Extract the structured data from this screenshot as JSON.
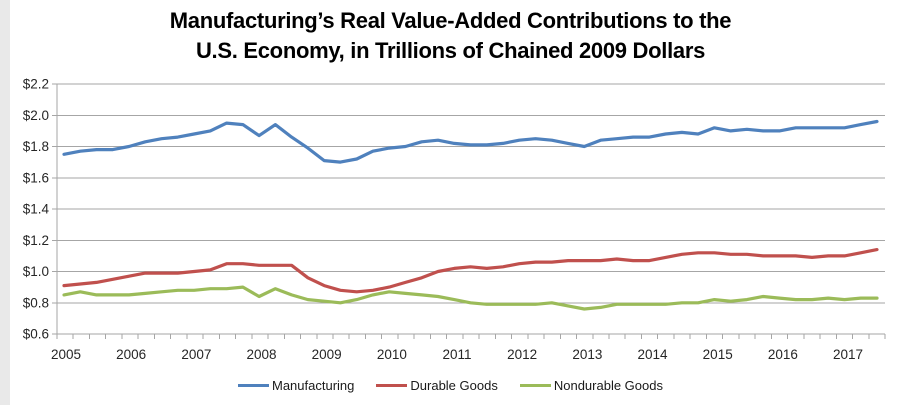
{
  "title_line1": "Manufacturing’s Real Value-Added Contributions to the",
  "title_line2": "U.S. Economy, in Trillions of Chained 2009 Dollars",
  "chart_data": {
    "type": "line",
    "title": "Manufacturing’s Real Value-Added Contributions to the U.S. Economy, in Trillions of Chained 2009 Dollars",
    "xlabel": "",
    "ylabel": "",
    "ylim": [
      0.6,
      2.2
    ],
    "ytick_step": 0.2,
    "y_tick_labels": [
      "$2.2",
      "$2.0",
      "$1.8",
      "$1.6",
      "$1.4",
      "$1.2",
      "$1.0",
      "$0.8",
      "$0.6"
    ],
    "y_tick_values": [
      2.2,
      2.0,
      1.8,
      1.6,
      1.4,
      1.2,
      1.0,
      0.8,
      0.6
    ],
    "x_year_labels": [
      "2005",
      "2006",
      "2007",
      "2008",
      "2009",
      "2010",
      "2011",
      "2012",
      "2013",
      "2014",
      "2015",
      "2016",
      "2017"
    ],
    "grid": true,
    "legend_position": "bottom",
    "x": [
      "2005 Q1",
      "2005 Q2",
      "2005 Q3",
      "2005 Q4",
      "2006 Q1",
      "2006 Q2",
      "2006 Q3",
      "2006 Q4",
      "2007 Q1",
      "2007 Q2",
      "2007 Q3",
      "2007 Q4",
      "2008 Q1",
      "2008 Q2",
      "2008 Q3",
      "2008 Q4",
      "2009 Q1",
      "2009 Q2",
      "2009 Q3",
      "2009 Q4",
      "2010 Q1",
      "2010 Q2",
      "2010 Q3",
      "2010 Q4",
      "2011 Q1",
      "2011 Q2",
      "2011 Q3",
      "2011 Q4",
      "2012 Q1",
      "2012 Q2",
      "2012 Q3",
      "2012 Q4",
      "2013 Q1",
      "2013 Q2",
      "2013 Q3",
      "2013 Q4",
      "2014 Q1",
      "2014 Q2",
      "2014 Q3",
      "2014 Q4",
      "2015 Q1",
      "2015 Q2",
      "2015 Q3",
      "2015 Q4",
      "2016 Q1",
      "2016 Q2",
      "2016 Q3",
      "2016 Q4",
      "2017 Q1",
      "2017 Q2",
      "2017 Q3"
    ],
    "series": [
      {
        "name": "Manufacturing",
        "color": "#4F81BD",
        "values": [
          1.75,
          1.77,
          1.78,
          1.78,
          1.8,
          1.83,
          1.85,
          1.86,
          1.88,
          1.9,
          1.95,
          1.94,
          1.87,
          1.94,
          1.86,
          1.79,
          1.71,
          1.7,
          1.72,
          1.77,
          1.79,
          1.8,
          1.83,
          1.84,
          1.82,
          1.81,
          1.81,
          1.82,
          1.84,
          1.85,
          1.84,
          1.82,
          1.8,
          1.84,
          1.85,
          1.86,
          1.86,
          1.88,
          1.89,
          1.88,
          1.92,
          1.9,
          1.91,
          1.9,
          1.9,
          1.92,
          1.92,
          1.92,
          1.92,
          1.94,
          1.96
        ]
      },
      {
        "name": "Durable Goods",
        "color": "#C0504D",
        "values": [
          0.91,
          0.92,
          0.93,
          0.95,
          0.97,
          0.99,
          0.99,
          0.99,
          1.0,
          1.01,
          1.05,
          1.05,
          1.04,
          1.04,
          1.04,
          0.96,
          0.91,
          0.88,
          0.87,
          0.88,
          0.9,
          0.93,
          0.96,
          1.0,
          1.02,
          1.03,
          1.02,
          1.03,
          1.05,
          1.06,
          1.06,
          1.07,
          1.07,
          1.07,
          1.08,
          1.07,
          1.07,
          1.09,
          1.11,
          1.12,
          1.12,
          1.11,
          1.11,
          1.1,
          1.1,
          1.1,
          1.09,
          1.1,
          1.1,
          1.12,
          1.14
        ]
      },
      {
        "name": "Nondurable Goods",
        "color": "#9BBB59",
        "values": [
          0.85,
          0.87,
          0.85,
          0.85,
          0.85,
          0.86,
          0.87,
          0.88,
          0.88,
          0.89,
          0.89,
          0.9,
          0.84,
          0.89,
          0.85,
          0.82,
          0.81,
          0.8,
          0.82,
          0.85,
          0.87,
          0.86,
          0.85,
          0.84,
          0.82,
          0.8,
          0.79,
          0.79,
          0.79,
          0.79,
          0.8,
          0.78,
          0.76,
          0.77,
          0.79,
          0.79,
          0.79,
          0.79,
          0.8,
          0.8,
          0.82,
          0.81,
          0.82,
          0.84,
          0.83,
          0.82,
          0.82,
          0.83,
          0.82,
          0.83,
          0.83
        ]
      }
    ],
    "colors": {
      "gridline": "#A6A6A6",
      "axis_text": "#262626",
      "background": "#FFFFFF"
    }
  }
}
